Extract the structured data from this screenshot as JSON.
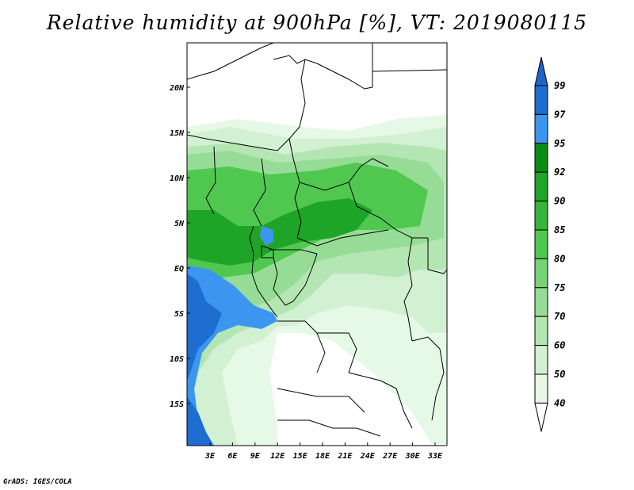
{
  "title": "Relative humidity at 900hPa [%], VT: 2019080115",
  "credit": "GrADS: IGES/COLA",
  "map": {
    "lat_labels": [
      "20N",
      "15N",
      "10N",
      "5N",
      "EQ",
      "5S",
      "10S",
      "15S"
    ],
    "lon_labels": [
      "3E",
      "6E",
      "9E",
      "12E",
      "15E",
      "18E",
      "21E",
      "24E",
      "27E",
      "30E",
      "33E"
    ]
  },
  "colorbar": {
    "labels": [
      "99",
      "97",
      "95",
      "92",
      "90",
      "85",
      "80",
      "75",
      "70",
      "60",
      "50",
      "40"
    ],
    "colors": [
      "#1e64c8",
      "#1e6ed2",
      "#3c96f0",
      "#0a8c14",
      "#1ea528",
      "#37b43c",
      "#50c850",
      "#78d278",
      "#96dc96",
      "#b4e6b4",
      "#d2f0d2",
      "#e6f8e6",
      "#ffffff"
    ]
  }
}
